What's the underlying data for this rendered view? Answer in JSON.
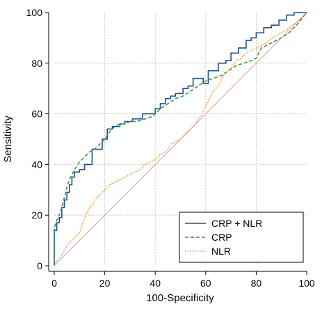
{
  "chart_data": {
    "type": "line",
    "title": "",
    "xlabel": "100-Specificity",
    "ylabel": "Sensitivity",
    "xlim": [
      0,
      100
    ],
    "ylim": [
      0,
      100
    ],
    "x_ticks": [
      "0",
      "20",
      "40",
      "60",
      "80",
      "100"
    ],
    "y_ticks": [
      "0",
      "20",
      "40",
      "60",
      "80",
      "100"
    ],
    "grid": true,
    "legend_position": "bottom-right",
    "reference_line": {
      "x": [
        0,
        100
      ],
      "y": [
        0,
        100
      ],
      "color": "#d9a0a0"
    },
    "series": [
      {
        "name": "CRP + NLR",
        "color": "#1f4e99",
        "style": "solid",
        "x": [
          0,
          0,
          1,
          1,
          2,
          2,
          3,
          3,
          4,
          4,
          5,
          5,
          6,
          6,
          7,
          7,
          8,
          8,
          10,
          10,
          12,
          12,
          15,
          15,
          19,
          19,
          21,
          21,
          23,
          23,
          26,
          26,
          28,
          28,
          31,
          31,
          35,
          35,
          40,
          40,
          42,
          42,
          44,
          44,
          46,
          46,
          48,
          48,
          51,
          51,
          53,
          53,
          55,
          55,
          59,
          59,
          61,
          61,
          65,
          65,
          68,
          68,
          70,
          70,
          73,
          73,
          76,
          76,
          78,
          78,
          80,
          80,
          83,
          83,
          86,
          86,
          89,
          89,
          92,
          92,
          95,
          95,
          100
        ],
        "y": [
          0,
          14,
          14,
          17,
          17,
          19,
          19,
          23,
          23,
          26,
          26,
          29,
          29,
          32,
          32,
          35,
          35,
          37,
          37,
          38,
          38,
          40,
          40,
          46,
          46,
          50,
          50,
          54,
          54,
          55,
          55,
          56,
          56,
          57,
          57,
          58,
          58,
          60,
          60,
          62,
          62,
          64,
          64,
          66,
          66,
          67,
          67,
          68,
          68,
          70,
          70,
          71,
          71,
          74,
          74,
          72,
          72,
          77,
          77,
          80,
          80,
          81,
          81,
          84,
          84,
          86,
          86,
          89,
          89,
          90,
          90,
          92,
          92,
          94,
          94,
          95,
          95,
          97,
          97,
          99,
          99,
          100,
          100
        ]
      },
      {
        "name": "CRP",
        "color": "#2a9a2a",
        "style": "dashed",
        "x": [
          0,
          0,
          1,
          2,
          3,
          4,
          5,
          6,
          7,
          8,
          10,
          12,
          14,
          16,
          18,
          20,
          22,
          24,
          26,
          28,
          30,
          33,
          36,
          39,
          42,
          45,
          48,
          51,
          54,
          57,
          60,
          63,
          66,
          69,
          72,
          75,
          78,
          80,
          82,
          84,
          86,
          88,
          90,
          93,
          96,
          100
        ],
        "y": [
          0,
          15,
          18,
          20,
          23,
          27,
          31,
          34,
          36,
          38,
          41,
          43,
          45,
          46,
          48,
          50,
          53,
          55,
          56,
          56,
          57,
          57,
          58,
          59,
          62,
          64,
          66,
          67,
          69,
          71,
          73,
          74,
          75,
          77,
          79,
          80,
          81,
          82,
          86,
          87,
          88,
          89,
          90,
          92,
          95,
          100
        ]
      },
      {
        "name": "NLR",
        "color": "#f08a24",
        "style": "dotted",
        "x": [
          0,
          1,
          2,
          3,
          4,
          5,
          6,
          7,
          8,
          9,
          10,
          11,
          12,
          13,
          14,
          15,
          16,
          17,
          18,
          19,
          20,
          22,
          24,
          26,
          28,
          30,
          32,
          34,
          36,
          38,
          40,
          42,
          44,
          45,
          46,
          48,
          50,
          52,
          53,
          54,
          55,
          56,
          57,
          58,
          59,
          60,
          61,
          62,
          63,
          64,
          65,
          66,
          67,
          68,
          69,
          70,
          72,
          74,
          76,
          78,
          80,
          82,
          84,
          86,
          88,
          90,
          92,
          94,
          96,
          98,
          100
        ],
        "y": [
          0,
          2,
          3,
          4,
          6,
          8,
          9,
          10,
          11,
          12,
          13,
          16,
          19,
          21,
          23,
          24,
          26,
          27,
          28,
          29,
          30,
          32,
          33,
          34,
          35,
          36,
          37,
          38,
          40,
          41,
          42,
          44,
          45,
          46,
          48,
          49,
          50,
          52,
          53,
          54,
          55,
          56,
          58,
          59,
          61,
          63,
          65,
          67,
          69,
          70,
          71,
          73,
          75,
          76,
          77,
          78,
          81,
          82,
          84,
          85,
          86,
          87,
          88,
          90,
          91,
          92,
          93,
          95,
          96,
          98,
          100
        ]
      }
    ]
  }
}
